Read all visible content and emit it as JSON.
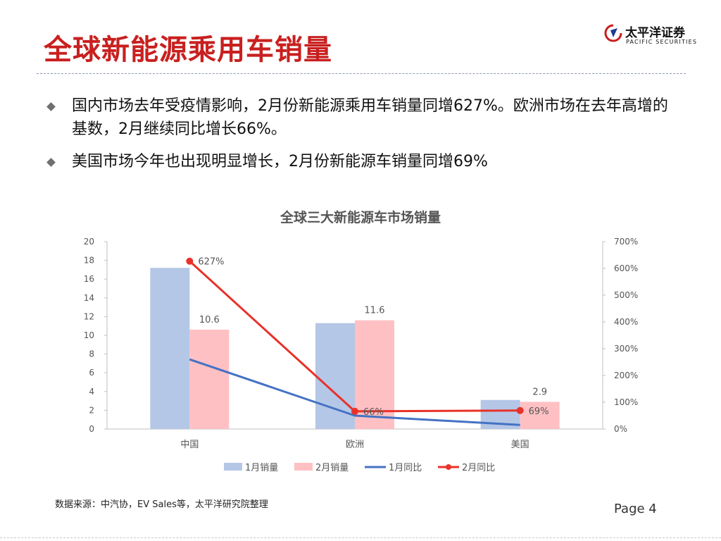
{
  "header": {
    "title": "全球新能源乘用车销量",
    "logo_cn": "太平洋证券",
    "logo_en": "PACIFIC SECURITIES"
  },
  "bullets": [
    "国内市场去年受疫情影响，2月份新能源乘用车销量同增627%。欧洲市场在去年高增的基数，2月继续同比增长66%。",
    "美国市场今年也出现明显增长，2月份新能源车销量同增69%"
  ],
  "colors": {
    "title_red": "#c8201f",
    "bar_jan": "#b4c7e7",
    "bar_feb": "#ffc0c4",
    "line_jan": "#4472c4",
    "line_feb": "#e8322a"
  },
  "chart_data": {
    "type": "bar",
    "title": "全球三大新能源车市场销量",
    "categories": [
      "中国",
      "欧洲",
      "美国"
    ],
    "ylim": [
      0,
      20
    ],
    "yticks": [
      "0",
      "2",
      "4",
      "6",
      "8",
      "10",
      "12",
      "14",
      "16",
      "18",
      "20"
    ],
    "y2lim": [
      0,
      700
    ],
    "y2ticks": [
      "0%",
      "100%",
      "200%",
      "300%",
      "400%",
      "500%",
      "600%",
      "700%"
    ],
    "grid": false,
    "legend_position": "bottom",
    "series": [
      {
        "name": "1月销量",
        "kind": "bar",
        "axis": "left",
        "values": [
          17.2,
          11.3,
          3.1
        ],
        "labels": [
          null,
          null,
          null
        ]
      },
      {
        "name": "2月销量",
        "kind": "bar",
        "axis": "left",
        "values": [
          10.6,
          11.6,
          2.9
        ],
        "labels": [
          "10.6",
          "11.6",
          "2.9"
        ]
      },
      {
        "name": "1月同比",
        "kind": "line",
        "axis": "right",
        "values": [
          260,
          50,
          15
        ],
        "labels": [
          null,
          null,
          null
        ]
      },
      {
        "name": "2月同比",
        "kind": "line",
        "axis": "right",
        "values": [
          627,
          66,
          69
        ],
        "labels": [
          "627%",
          "66%",
          "69%"
        ]
      }
    ]
  },
  "footer": {
    "source": "数据来源：中汽协，EV Sales等，太平洋研究院整理",
    "page": "Page 4"
  }
}
